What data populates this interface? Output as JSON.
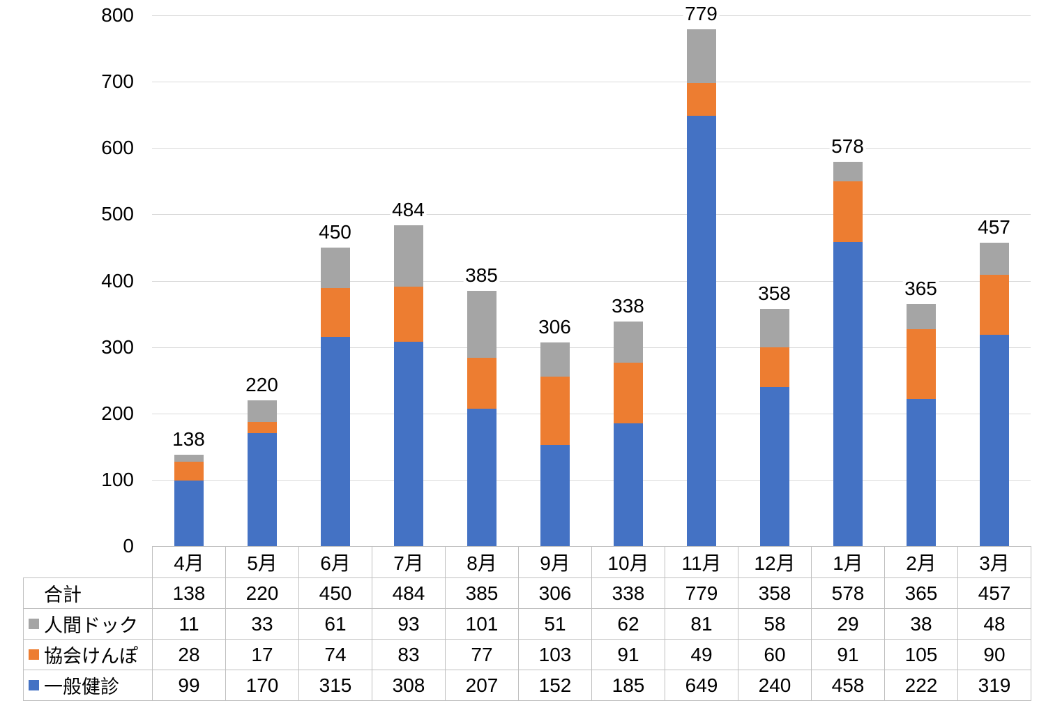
{
  "chart_data": {
    "type": "bar",
    "stacked": true,
    "title": "",
    "categories": [
      "4月",
      "5月",
      "6月",
      "7月",
      "8月",
      "9月",
      "10月",
      "11月",
      "12月",
      "1月",
      "2月",
      "3月"
    ],
    "series": [
      {
        "name": "一般健診",
        "color": "#4472C4",
        "values": [
          99,
          170,
          315,
          308,
          207,
          152,
          185,
          649,
          240,
          458,
          222,
          319
        ]
      },
      {
        "name": "協会けんぽ",
        "color": "#ED7D31",
        "values": [
          28,
          17,
          74,
          83,
          77,
          103,
          91,
          49,
          60,
          91,
          105,
          90
        ]
      },
      {
        "name": "人間ドック",
        "color": "#A5A5A5",
        "values": [
          11,
          33,
          61,
          93,
          101,
          51,
          62,
          81,
          58,
          29,
          38,
          48
        ]
      }
    ],
    "totals": [
      138,
      220,
      450,
      484,
      385,
      306,
      338,
      779,
      358,
      578,
      365,
      457
    ],
    "total_row_label": "合計",
    "ylim": [
      0,
      800
    ],
    "ytick_step": 100,
    "yticks": [
      0,
      100,
      200,
      300,
      400,
      500,
      600,
      700,
      800
    ],
    "grid": true,
    "gridline_color": "#D9D9D9",
    "table_border_color": "#BFBFBF",
    "text_color": "#000000",
    "background_color": "#FFFFFF",
    "data_labels": "total value above each bar",
    "legend_position": "data-table left column with color keys"
  }
}
